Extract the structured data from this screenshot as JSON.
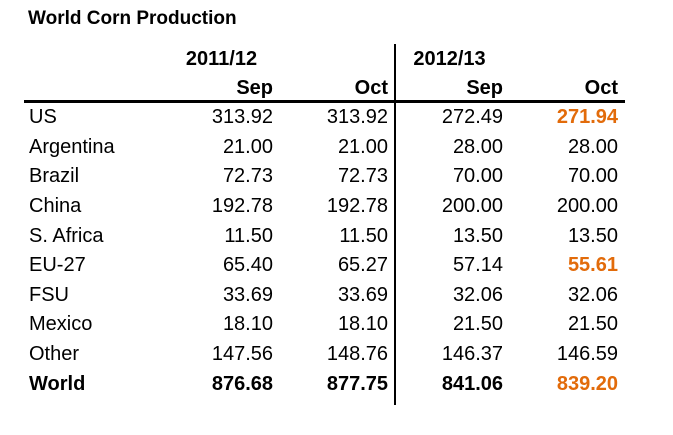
{
  "title": "World Corn Production",
  "colors": {
    "text": "#000000",
    "background": "#FFFFFF",
    "highlight": "#E26B0A"
  },
  "table": {
    "year_groups": [
      "2011/12",
      "2012/13"
    ],
    "sub_headers": [
      "Sep",
      "Oct",
      "Sep",
      "Oct"
    ],
    "rows": [
      {
        "label": "US",
        "values": [
          "313.92",
          "313.92",
          "272.49",
          "271.94"
        ]
      },
      {
        "label": "Argentina",
        "values": [
          "21.00",
          "21.00",
          "28.00",
          "28.00"
        ]
      },
      {
        "label": "Brazil",
        "values": [
          "72.73",
          "72.73",
          "70.00",
          "70.00"
        ]
      },
      {
        "label": "China",
        "values": [
          "192.78",
          "192.78",
          "200.00",
          "200.00"
        ]
      },
      {
        "label": "S. Africa",
        "values": [
          "11.50",
          "11.50",
          "13.50",
          "13.50"
        ]
      },
      {
        "label": "EU-27",
        "values": [
          "65.40",
          "65.27",
          "57.14",
          "55.61"
        ]
      },
      {
        "label": "FSU",
        "values": [
          "33.69",
          "33.69",
          "32.06",
          "32.06"
        ]
      },
      {
        "label": "Mexico",
        "values": [
          "18.10",
          "18.10",
          "21.50",
          "21.50"
        ]
      },
      {
        "label": "Other",
        "values": [
          "147.56",
          "148.76",
          "146.37",
          "146.59"
        ]
      },
      {
        "label": "World",
        "values": [
          "876.68",
          "877.75",
          "841.06",
          "839.20"
        ]
      }
    ]
  },
  "chart_data": {
    "type": "table",
    "title": "World Corn Production",
    "column_groups": [
      {
        "label": "2011/12",
        "columns": [
          "Sep",
          "Oct"
        ]
      },
      {
        "label": "2012/13",
        "columns": [
          "Sep",
          "Oct"
        ]
      }
    ],
    "row_labels": [
      "US",
      "Argentina",
      "Brazil",
      "China",
      "S. Africa",
      "EU-27",
      "FSU",
      "Mexico",
      "Other",
      "World"
    ],
    "series": [
      {
        "name": "2011/12 Sep",
        "values": [
          313.92,
          21.0,
          72.73,
          192.78,
          11.5,
          65.4,
          33.69,
          18.1,
          147.56,
          876.68
        ]
      },
      {
        "name": "2011/12 Oct",
        "values": [
          313.92,
          21.0,
          72.73,
          192.78,
          11.5,
          65.27,
          33.69,
          18.1,
          148.76,
          877.75
        ]
      },
      {
        "name": "2012/13 Sep",
        "values": [
          272.49,
          28.0,
          70.0,
          200.0,
          13.5,
          57.14,
          32.06,
          21.5,
          146.37,
          841.06
        ]
      },
      {
        "name": "2012/13 Oct",
        "values": [
          271.94,
          28.0,
          70.0,
          200.0,
          13.5,
          55.61,
          32.06,
          21.5,
          146.59,
          839.2
        ]
      }
    ],
    "highlighted_cells": [
      {
        "row": "US",
        "column": "2012/13 Oct",
        "value": 271.94
      },
      {
        "row": "EU-27",
        "column": "2012/13 Oct",
        "value": 55.61
      },
      {
        "row": "World",
        "column": "2012/13 Oct",
        "value": 839.2
      }
    ],
    "highlight_color": "#E26B0A",
    "bold_rows": [
      "World"
    ]
  }
}
